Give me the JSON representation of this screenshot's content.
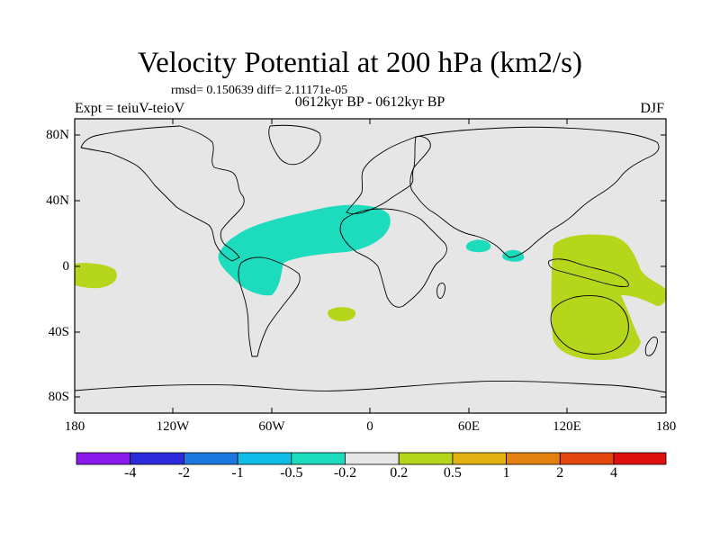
{
  "title": "Velocity Potential at 200 hPa (km2/s)",
  "stats": "rmsd= 0.150639 diff= 2.11171e-05",
  "experiment": "Expt = teiuV-teioV",
  "period": "0612kyr BP - 0612kyr BP",
  "season": "DJF",
  "lat_labels": [
    "80N",
    "40N",
    "0",
    "40S",
    "80S"
  ],
  "lon_labels": [
    "180",
    "120W",
    "60W",
    "0",
    "60E",
    "120E",
    "180"
  ],
  "colorbar": {
    "labels": [
      "-4",
      "-2",
      "-1",
      "-0.5",
      "-0.2",
      "0.2",
      "0.5",
      "1",
      "2",
      "4"
    ],
    "colors": [
      "#8a1aeb",
      "#2b2bdd",
      "#1a78e0",
      "#10bde6",
      "#1ddcbe",
      "#e6e6e6",
      "#b5d61a",
      "#e2b211",
      "#e48010",
      "#e3460f",
      "#e01010"
    ]
  },
  "map": {
    "ocean_color": "#e6e6e6",
    "negative_anomaly_color": "#1ddcbe",
    "positive_anomaly_color": "#b5d61a",
    "lat_range": [
      -90,
      90
    ],
    "lon_range": [
      -180,
      180
    ]
  }
}
